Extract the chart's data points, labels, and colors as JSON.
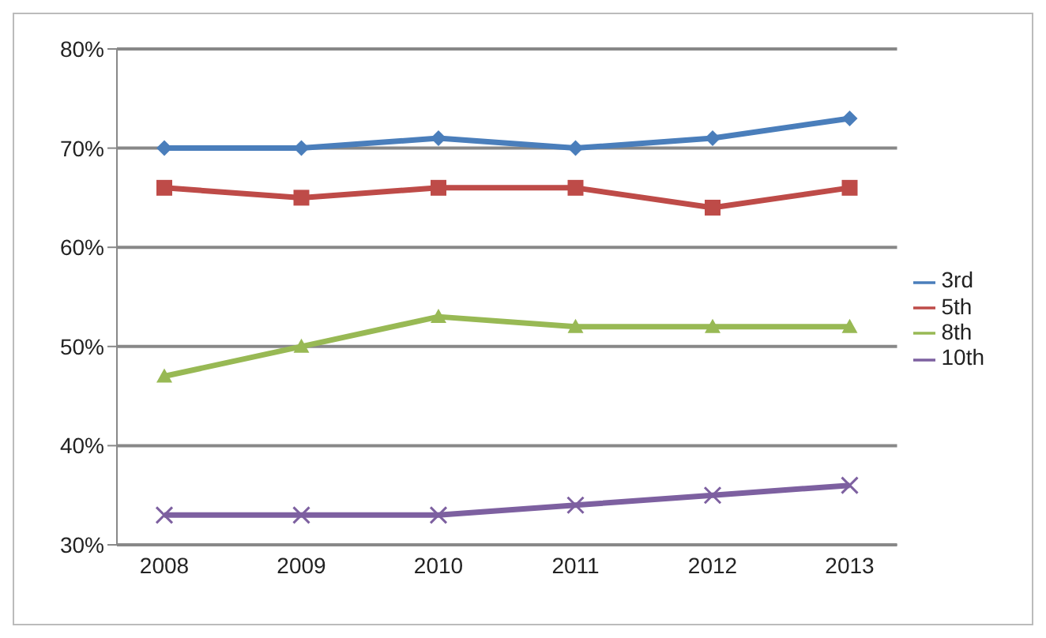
{
  "chart_data": {
    "type": "line",
    "categories": [
      "2008",
      "2009",
      "2010",
      "2011",
      "2012",
      "2013"
    ],
    "series": [
      {
        "name": "3rd",
        "color": "#4a7ebb",
        "marker": "diamond",
        "values": [
          70,
          70,
          71,
          70,
          71,
          73
        ]
      },
      {
        "name": "5th",
        "color": "#be4b48",
        "marker": "square",
        "values": [
          66,
          65,
          66,
          66,
          64,
          66
        ]
      },
      {
        "name": "8th",
        "color": "#98b954",
        "marker": "triangle",
        "values": [
          47,
          50,
          53,
          52,
          52,
          52
        ]
      },
      {
        "name": "10th",
        "color": "#7d60a0",
        "marker": "cross",
        "values": [
          33,
          33,
          33,
          34,
          35,
          36
        ]
      }
    ],
    "ylim": [
      30,
      80
    ],
    "yticks": [
      {
        "value": 30,
        "label": "30%"
      },
      {
        "value": 40,
        "label": "40%"
      },
      {
        "value": 50,
        "label": "50%"
      },
      {
        "value": 60,
        "label": "60%"
      },
      {
        "value": 70,
        "label": "70%"
      },
      {
        "value": 80,
        "label": "80%"
      }
    ],
    "grid": "y",
    "legend": "right"
  }
}
